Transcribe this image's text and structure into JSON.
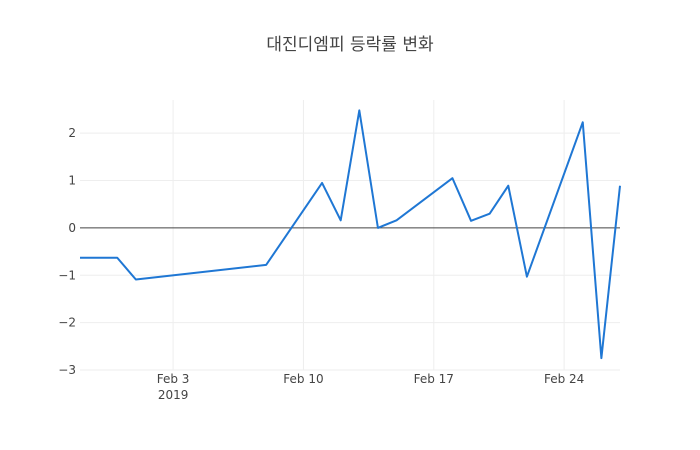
{
  "chart_data": {
    "type": "line",
    "title": "대진디엠피 등락률 변화",
    "xlabel": "",
    "ylabel": "",
    "x_range": [
      "2019-01-29",
      "2019-02-27"
    ],
    "ylim": [
      -3.0,
      2.7
    ],
    "x_ticks": [
      {
        "date": "2019-02-03",
        "label": "Feb 3",
        "sublabel": "2019"
      },
      {
        "date": "2019-02-10",
        "label": "Feb 10",
        "sublabel": ""
      },
      {
        "date": "2019-02-17",
        "label": "Feb 17",
        "sublabel": ""
      },
      {
        "date": "2019-02-24",
        "label": "Feb 24",
        "sublabel": ""
      }
    ],
    "y_ticks": [
      {
        "value": 2,
        "label": "2"
      },
      {
        "value": 1,
        "label": "1"
      },
      {
        "value": 0,
        "label": "0"
      },
      {
        "value": -1,
        "label": "−1"
      },
      {
        "value": -2,
        "label": "−2"
      },
      {
        "value": -3,
        "label": "−3"
      }
    ],
    "grid": true,
    "series": [
      {
        "color": "#1f77d4",
        "points": [
          {
            "x": "2019-01-29",
            "y": -0.63
          },
          {
            "x": "2019-01-30",
            "y": -0.63
          },
          {
            "x": "2019-01-31",
            "y": -0.63
          },
          {
            "x": "2019-02-01",
            "y": -1.09
          },
          {
            "x": "2019-02-08",
            "y": -0.78
          },
          {
            "x": "2019-02-11",
            "y": 0.95
          },
          {
            "x": "2019-02-12",
            "y": 0.16
          },
          {
            "x": "2019-02-13",
            "y": 2.48
          },
          {
            "x": "2019-02-14",
            "y": 0.0
          },
          {
            "x": "2019-02-15",
            "y": 0.16
          },
          {
            "x": "2019-02-18",
            "y": 1.05
          },
          {
            "x": "2019-02-19",
            "y": 0.15
          },
          {
            "x": "2019-02-20",
            "y": 0.3
          },
          {
            "x": "2019-02-21",
            "y": 0.89
          },
          {
            "x": "2019-02-22",
            "y": -1.03
          },
          {
            "x": "2019-02-25",
            "y": 2.23
          },
          {
            "x": "2019-02-26",
            "y": -2.75
          },
          {
            "x": "2019-02-27",
            "y": 0.89
          }
        ]
      }
    ]
  }
}
